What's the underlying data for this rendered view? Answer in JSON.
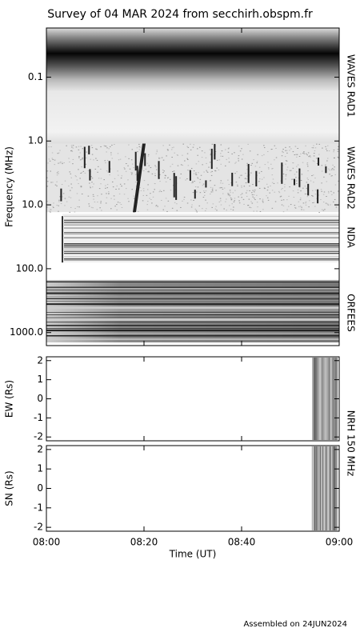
{
  "title": "Survey of 04 MAR 2024 from secchirh.obspm.fr",
  "footer": "Assembled on 24JUN2024",
  "chart_data": [
    {
      "type": "spectrogram",
      "ylabel": "Frequency (MHz)",
      "log_y": true,
      "y_inverted": true,
      "ylim": [
        0.017,
        1600
      ],
      "yticks": [
        0.1,
        {
          "value": 1,
          "label": "1.0"
        },
        {
          "value": 10,
          "label": "10.0"
        },
        {
          "value": 100,
          "label": "100.0"
        },
        {
          "value": 1000,
          "label": "1000.0"
        }
      ],
      "xlim": [
        480,
        540
      ],
      "band_labels": [
        "WAVES RAD1",
        "WAVES RAD2",
        "NDA",
        "ORFEES"
      ]
    },
    {
      "type": "image",
      "ylabel": "EW (Rs)",
      "ylim": [
        -2.2,
        2.2
      ],
      "yticks": [
        -2,
        -1,
        0,
        1,
        2
      ],
      "xlim": [
        480,
        540
      ],
      "right_label": "NRH 150 MHz"
    },
    {
      "type": "image",
      "ylabel": "SN (Rs)",
      "ylim": [
        -2.2,
        2.2
      ],
      "yticks": [
        -2,
        -1,
        0,
        1,
        2
      ],
      "xlim": [
        480,
        540
      ],
      "xlabel": "Time (UT)",
      "xticks": [
        {
          "value": 480,
          "label": "08:00"
        },
        {
          "value": 500,
          "label": "08:20"
        },
        {
          "value": 520,
          "label": "08:40"
        },
        {
          "value": 540,
          "label": "09:00"
        }
      ]
    }
  ]
}
